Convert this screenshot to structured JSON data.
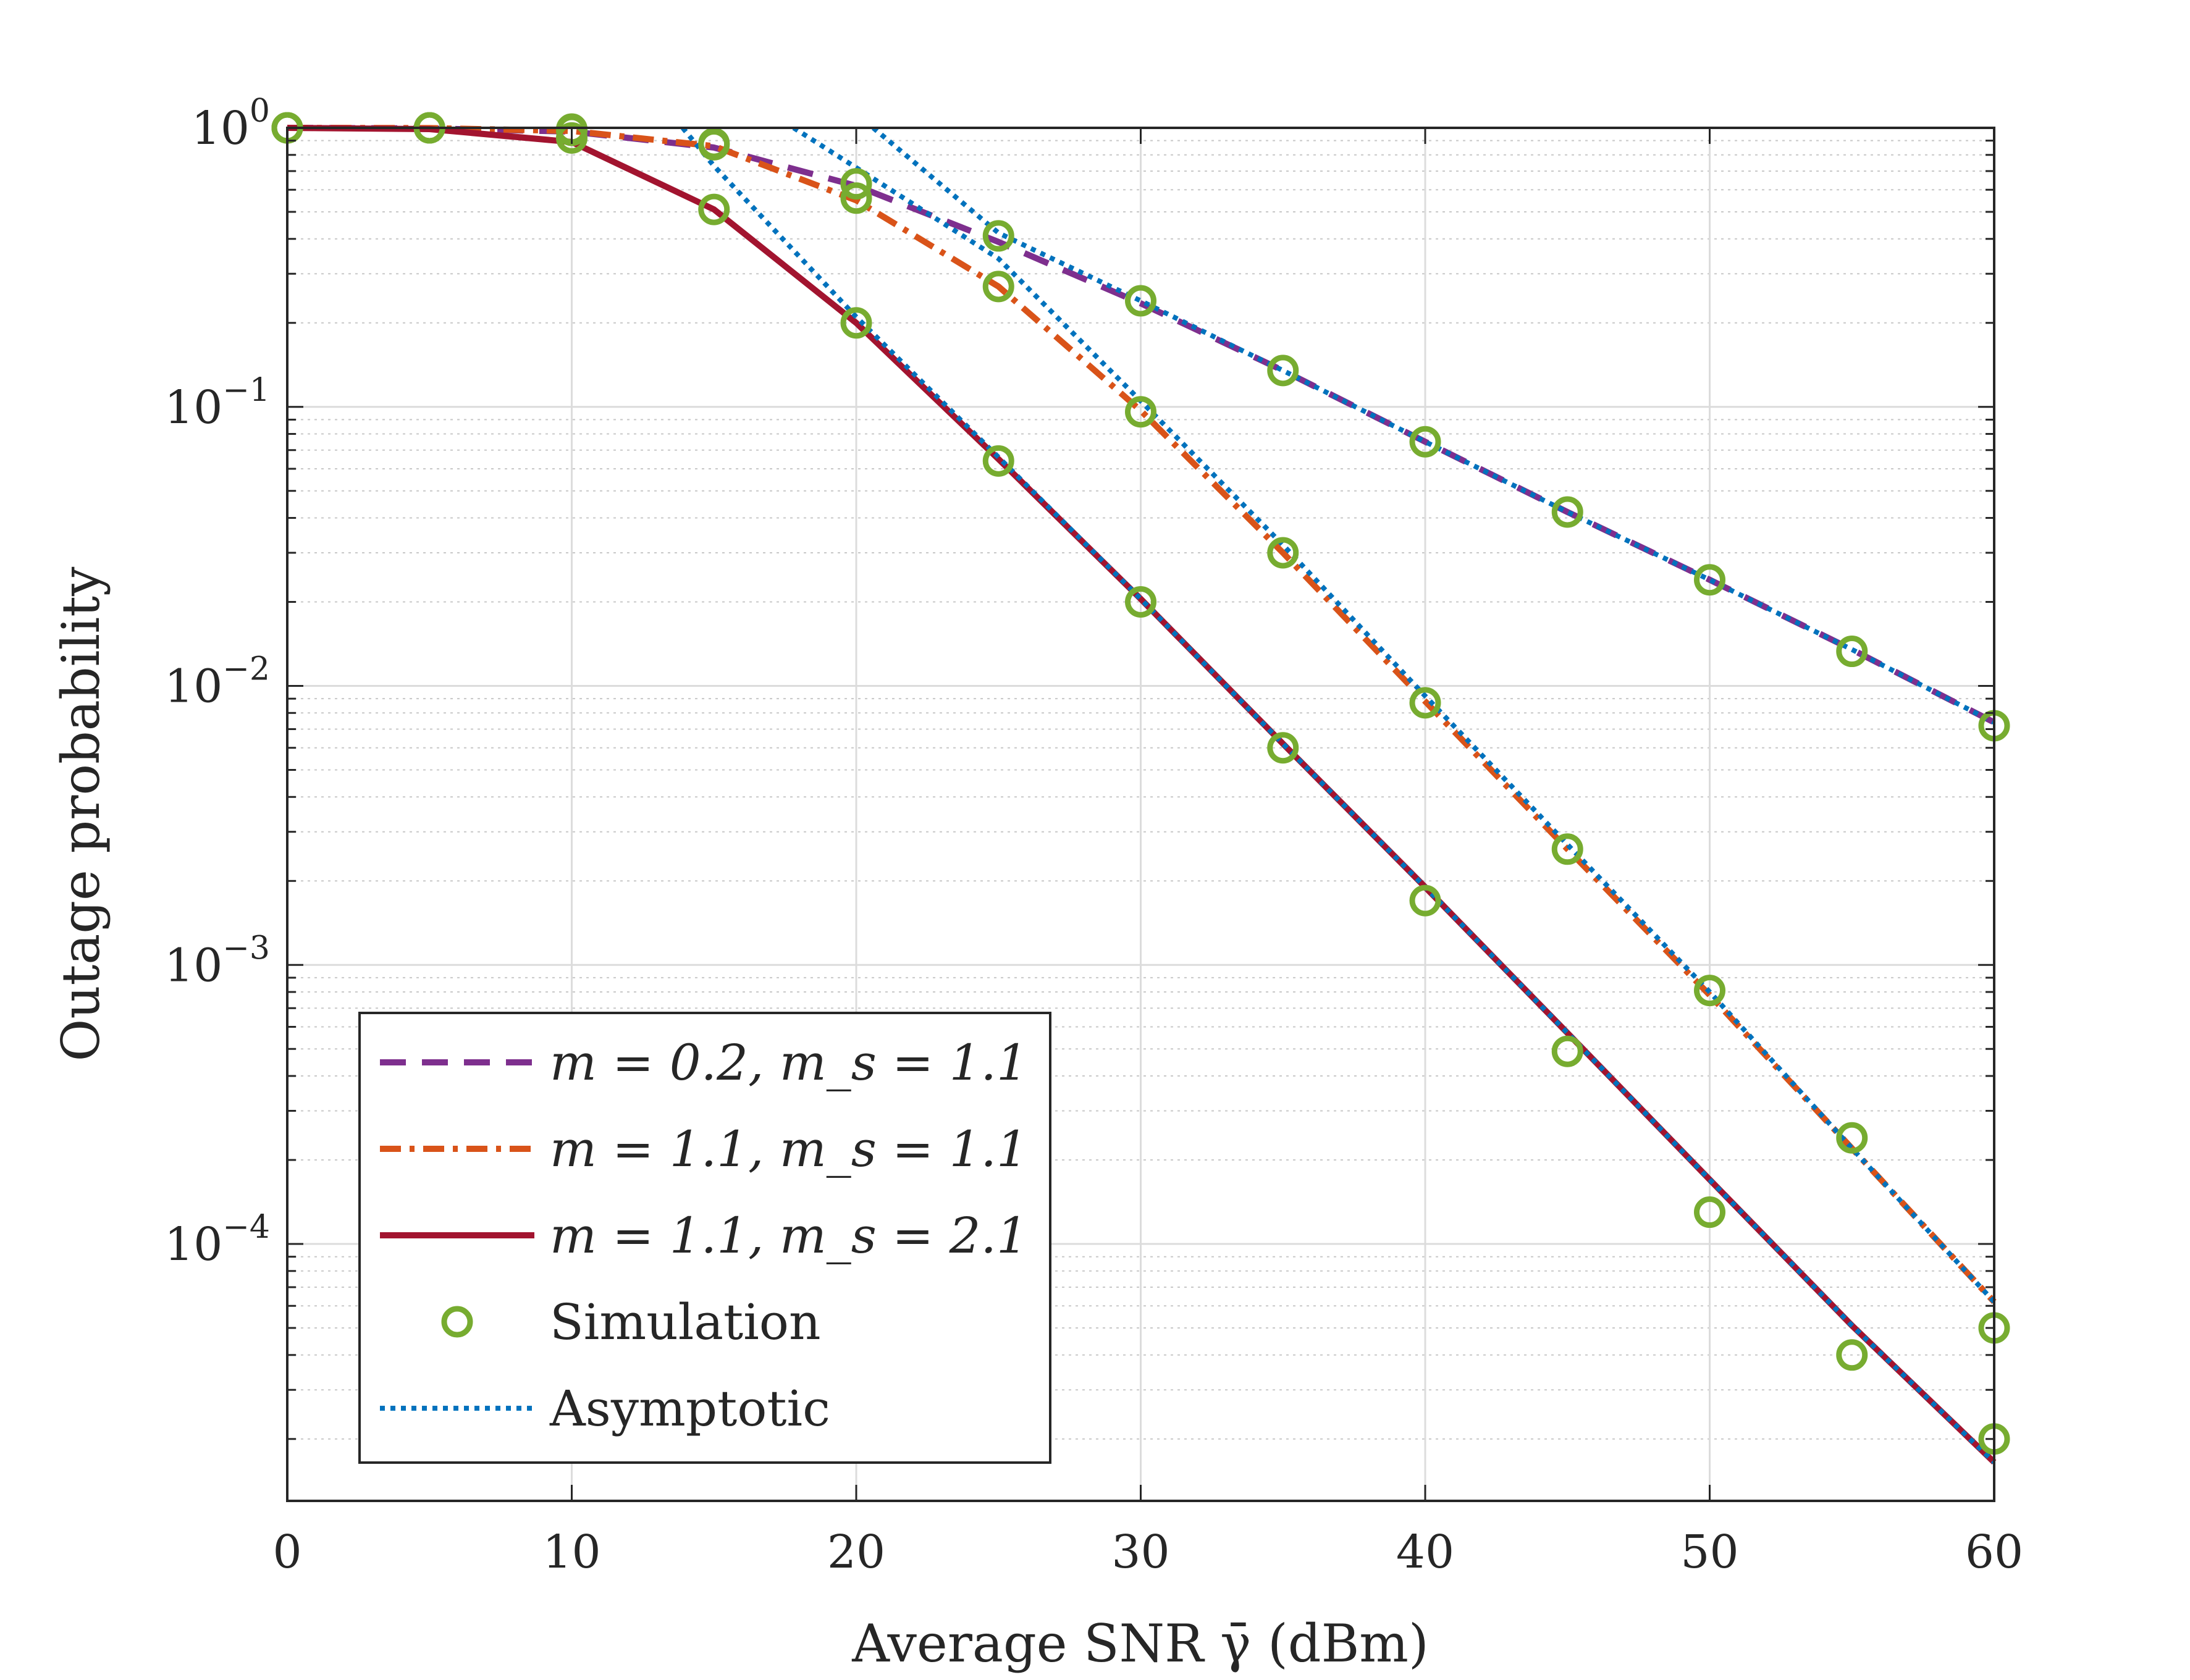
{
  "chart_data": {
    "type": "line",
    "yscale": "log",
    "xlabel": "Average SNR γ̄ (dBm)",
    "ylabel": "Outage probability",
    "xlim": [
      0,
      60
    ],
    "ylim": [
      1.2e-05,
      1
    ],
    "grid": true,
    "legend_position": "bottom-left",
    "x_ticks": [
      {
        "v": 0,
        "label": "0"
      },
      {
        "v": 10,
        "label": "10"
      },
      {
        "v": 20,
        "label": "20"
      },
      {
        "v": 30,
        "label": "30"
      },
      {
        "v": 40,
        "label": "40"
      },
      {
        "v": 50,
        "label": "50"
      },
      {
        "v": 60,
        "label": "60"
      }
    ],
    "y_ticks": [
      {
        "v": 1,
        "base": "10",
        "exp": "0"
      },
      {
        "v": 0.1,
        "base": "10",
        "exp": "−1"
      },
      {
        "v": 0.01,
        "base": "10",
        "exp": "−2"
      },
      {
        "v": 0.001,
        "base": "10",
        "exp": "−3"
      },
      {
        "v": 0.0001,
        "base": "10",
        "exp": "−4"
      }
    ],
    "series": [
      {
        "name": "m = 0.2, m_s = 1.1",
        "legend_label": "m = 0.2, m_s = 1.1",
        "color": "#7E2F8E",
        "style": "dashed",
        "x": [
          0,
          5,
          10,
          15,
          20,
          25,
          30,
          35,
          40,
          45,
          50,
          55,
          60
        ],
        "y": [
          1.0,
          0.995,
          0.97,
          0.85,
          0.62,
          0.39,
          0.235,
          0.135,
          0.075,
          0.042,
          0.024,
          0.0135,
          0.0074
        ]
      },
      {
        "name": "m = 1.1, m_s = 1.1",
        "legend_label": "m = 1.1, m_s = 1.1",
        "color": "#D95319",
        "style": "dashdot",
        "x": [
          0,
          5,
          10,
          15,
          20,
          25,
          30,
          35,
          40,
          45,
          50,
          55,
          60
        ],
        "y": [
          1.0,
          0.998,
          0.975,
          0.86,
          0.55,
          0.27,
          0.097,
          0.03,
          0.0088,
          0.0026,
          0.00078,
          0.00022,
          6.2e-05
        ]
      },
      {
        "name": "m = 1.1, m_s = 2.1",
        "legend_label": "m = 1.1, m_s = 2.1",
        "color": "#A2142F",
        "style": "solid",
        "x": [
          0,
          5,
          10,
          15,
          20,
          25,
          30,
          35,
          40,
          45,
          50,
          55,
          60
        ],
        "y": [
          1.0,
          0.99,
          0.89,
          0.51,
          0.2,
          0.065,
          0.0205,
          0.0062,
          0.0019,
          0.00057,
          0.00017,
          5.1e-05,
          1.65e-05
        ]
      }
    ],
    "simulation": {
      "name": "Simulation",
      "legend_label": "Simulation",
      "color": "#77AC30",
      "marker": "circle",
      "series": [
        {
          "x": [
            0,
            5,
            10,
            15,
            20,
            25,
            30,
            35,
            40,
            45,
            50,
            55,
            60
          ],
          "y": [
            1.0,
            1.0,
            0.98,
            0.88,
            0.63,
            0.41,
            0.24,
            0.135,
            0.075,
            0.042,
            0.024,
            0.0133,
            0.0072
          ]
        },
        {
          "x": [
            0,
            5,
            10,
            15,
            20,
            25,
            30,
            35,
            40,
            45,
            50,
            55,
            60
          ],
          "y": [
            1.0,
            1.0,
            0.99,
            0.87,
            0.56,
            0.27,
            0.096,
            0.03,
            0.0087,
            0.0026,
            0.00081,
            0.00024,
            5e-05
          ]
        },
        {
          "x": [
            0,
            5,
            10,
            15,
            20,
            25,
            30,
            35,
            40,
            45,
            50,
            55,
            60
          ],
          "y": [
            1.0,
            1.0,
            0.92,
            0.51,
            0.2,
            0.064,
            0.02,
            0.006,
            0.0017,
            0.00049,
            0.00013,
            4e-05,
            2e-05
          ]
        }
      ]
    },
    "asymptotic": {
      "name": "Asymptotic",
      "legend_label": "Asymptotic",
      "color": "#0072BD",
      "style": "dotted",
      "series": [
        {
          "x": [
            20.6,
            25,
            30,
            35,
            40,
            45,
            50,
            55,
            60
          ],
          "y": [
            1.0,
            0.42,
            0.24,
            0.135,
            0.075,
            0.042,
            0.024,
            0.0135,
            0.0074
          ]
        },
        {
          "x": [
            17.8,
            20,
            25,
            30,
            35,
            40,
            45,
            50,
            55,
            60
          ],
          "y": [
            1.0,
            0.72,
            0.34,
            0.105,
            0.032,
            0.0092,
            0.0027,
            0.0008,
            0.00022,
            6.2e-05
          ]
        },
        {
          "x": [
            13.9,
            15,
            20,
            25,
            30,
            35,
            40,
            45,
            50,
            55,
            60
          ],
          "y": [
            1.0,
            0.73,
            0.21,
            0.066,
            0.0205,
            0.0062,
            0.0019,
            0.00057,
            0.00017,
            5.1e-05,
            1.65e-05
          ]
        }
      ]
    }
  }
}
